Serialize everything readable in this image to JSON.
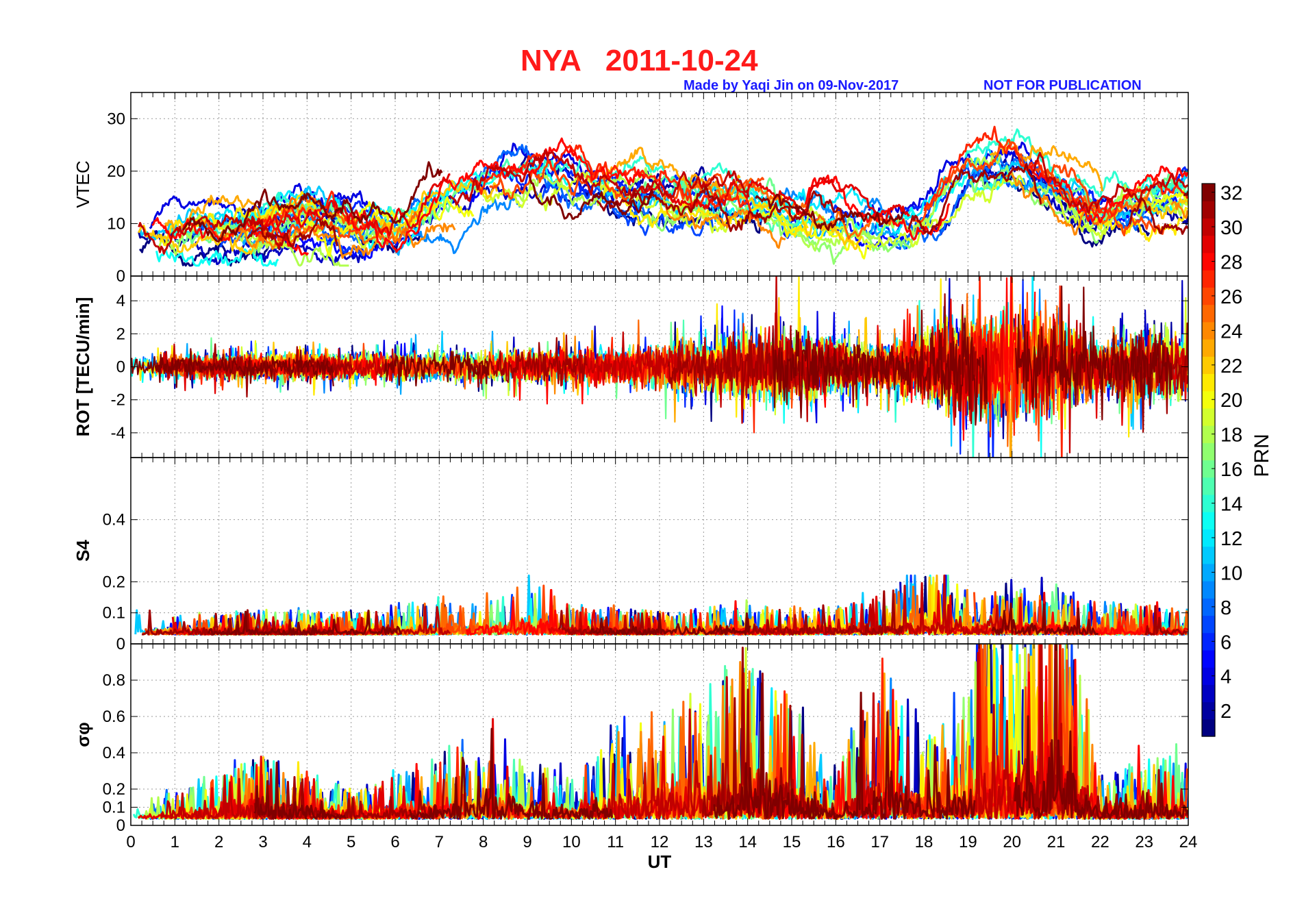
{
  "figure": {
    "station": "NYA",
    "date": "2011-10-24",
    "title": "NYA   2011-10-24",
    "credit": "Made by Yaqi Jin on 09-Nov-2017",
    "notice": "NOT FOR PUBLICATION",
    "title_color": "#ff1a1a",
    "credit_color": "#1a1aff"
  },
  "chart_data": {
    "type": "line",
    "description_units": "time series per GPS PRN (satellite), color coded by PRN",
    "x": {
      "label": "UT",
      "range": [
        0,
        24
      ],
      "ticks": [
        0,
        1,
        2,
        3,
        4,
        5,
        6,
        7,
        8,
        9,
        10,
        11,
        12,
        13,
        14,
        15,
        16,
        17,
        18,
        19,
        20,
        21,
        22,
        23,
        24
      ]
    },
    "panels": [
      {
        "id": "vtec",
        "ylabel": "VTEC",
        "ylim": [
          0,
          35
        ],
        "yticks": [
          0,
          10,
          20,
          30
        ],
        "grid": true,
        "anchors": [
          [
            0,
            8
          ],
          [
            1,
            7
          ],
          [
            2,
            8
          ],
          [
            3,
            9
          ],
          [
            4,
            11
          ],
          [
            5,
            9
          ],
          [
            6,
            9
          ],
          [
            7,
            14
          ],
          [
            8,
            18
          ],
          [
            9,
            19
          ],
          [
            10,
            17
          ],
          [
            11,
            16
          ],
          [
            12,
            15
          ],
          [
            13,
            14
          ],
          [
            14,
            14
          ],
          [
            15,
            12
          ],
          [
            16,
            10
          ],
          [
            17,
            10
          ],
          [
            18,
            11
          ],
          [
            19,
            20
          ],
          [
            20,
            21
          ],
          [
            21,
            17
          ],
          [
            22,
            11
          ],
          [
            23,
            14
          ],
          [
            24,
            15
          ]
        ],
        "spread": 6,
        "noise": 1.2,
        "coverage": 0.55
      },
      {
        "id": "rot",
        "ylabel": "ROT [TECU/min]",
        "ylim": [
          -5.5,
          5.5
        ],
        "yticks": [
          -4,
          -2,
          0,
          2,
          4
        ],
        "grid": true,
        "center": 0,
        "amp_anchors": [
          [
            0,
            0.9
          ],
          [
            3,
            0.9
          ],
          [
            6,
            1.0
          ],
          [
            8,
            1.2
          ],
          [
            10,
            1.3
          ],
          [
            12,
            1.6
          ],
          [
            14,
            2.6
          ],
          [
            15,
            2.8
          ],
          [
            16,
            2.0
          ],
          [
            17,
            1.6
          ],
          [
            18,
            2.4
          ],
          [
            19,
            4.2
          ],
          [
            20,
            4.2
          ],
          [
            21,
            3.8
          ],
          [
            22,
            2.2
          ],
          [
            23,
            2.6
          ],
          [
            24,
            2.6
          ]
        ]
      },
      {
        "id": "s4",
        "ylabel": "S4",
        "ylim": [
          0,
          0.6
        ],
        "yticks": [
          0,
          0.1,
          0.2,
          0.4
        ],
        "grid": true,
        "base": 0.05,
        "amp_anchors": [
          [
            0,
            0.03
          ],
          [
            5,
            0.03
          ],
          [
            8,
            0.05
          ],
          [
            9,
            0.08
          ],
          [
            10,
            0.04
          ],
          [
            12,
            0.03
          ],
          [
            14,
            0.04
          ],
          [
            17,
            0.05
          ],
          [
            18,
            0.1
          ],
          [
            19,
            0.07
          ],
          [
            21,
            0.06
          ],
          [
            22,
            0.04
          ],
          [
            24,
            0.04
          ]
        ]
      },
      {
        "id": "sigma_phi",
        "ylabel": "σφ",
        "ylim": [
          0,
          1.0
        ],
        "yticks": [
          0,
          0.1,
          0.2,
          0.4,
          0.6,
          0.8
        ],
        "grid": true,
        "base": 0.06,
        "amp_anchors": [
          [
            0,
            0.04
          ],
          [
            2,
            0.1
          ],
          [
            3,
            0.15
          ],
          [
            5,
            0.06
          ],
          [
            6,
            0.1
          ],
          [
            8,
            0.2
          ],
          [
            9,
            0.15
          ],
          [
            10,
            0.1
          ],
          [
            11,
            0.2
          ],
          [
            12,
            0.25
          ],
          [
            13,
            0.3
          ],
          [
            14,
            0.4
          ],
          [
            15,
            0.3
          ],
          [
            16,
            0.1
          ],
          [
            17,
            0.4
          ],
          [
            18,
            0.2
          ],
          [
            19,
            0.3
          ],
          [
            19.5,
            0.6
          ],
          [
            20,
            0.4
          ],
          [
            21,
            0.6
          ],
          [
            22,
            0.1
          ],
          [
            23,
            0.15
          ],
          [
            24,
            0.15
          ]
        ]
      }
    ],
    "colorbar": {
      "label": "PRN",
      "range": [
        1,
        32
      ],
      "ticks": [
        2,
        4,
        6,
        8,
        10,
        12,
        14,
        16,
        18,
        20,
        22,
        24,
        26,
        28,
        30,
        32
      ],
      "colormap": "jet"
    },
    "prns": [
      1,
      2,
      3,
      4,
      5,
      6,
      7,
      8,
      9,
      10,
      11,
      12,
      13,
      14,
      15,
      16,
      17,
      18,
      19,
      20,
      21,
      22,
      23,
      24,
      25,
      26,
      27,
      28,
      29,
      30,
      31,
      32
    ]
  }
}
